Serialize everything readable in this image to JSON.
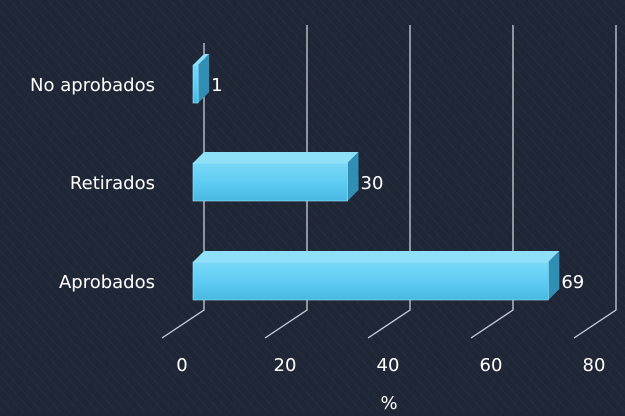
{
  "chart_data": {
    "type": "bar",
    "orientation": "horizontal",
    "three_d": true,
    "categories": [
      "No aprobados",
      "Retirados",
      "Aprobados"
    ],
    "values": [
      1,
      30,
      69
    ],
    "data_labels": [
      "1",
      "30",
      "69"
    ],
    "xlabel": "%",
    "xlim": [
      0,
      80
    ],
    "xticks": [
      0,
      20,
      40,
      60,
      80
    ],
    "grid": true,
    "colors": {
      "bar_front": "#5fcdf2",
      "bar_top": "#8ee0f8",
      "bar_side": "#2f8fb5",
      "grid": "#c9ced8",
      "background": "#1f2636",
      "text": "#ffffff"
    }
  }
}
